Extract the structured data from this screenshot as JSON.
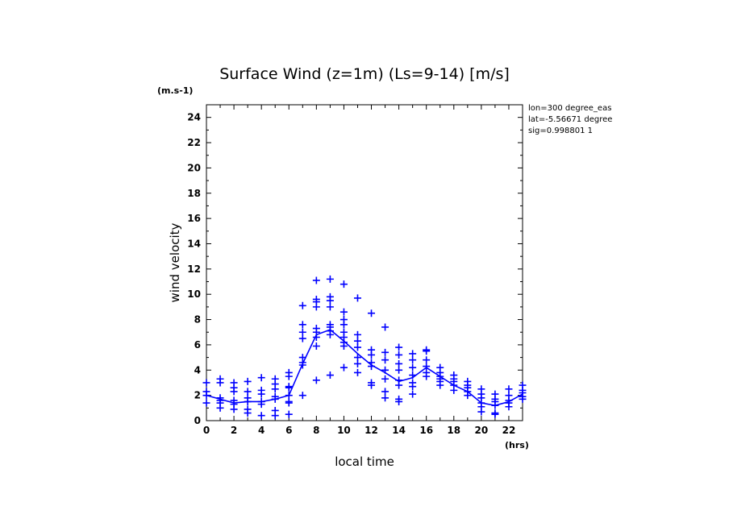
{
  "chart_data": {
    "type": "line",
    "title": "Surface Wind (z=1m) (Ls=9-14) [m/s]",
    "xlabel": "local time",
    "ylabel": "wind velocity",
    "x_unit": "(hrs)",
    "y_unit": "(m.s-1)",
    "xlim": [
      0,
      23
    ],
    "ylim": [
      0,
      25
    ],
    "x_ticks": [
      0,
      2,
      4,
      6,
      8,
      10,
      12,
      14,
      16,
      18,
      20,
      22
    ],
    "y_ticks": [
      0,
      2,
      4,
      6,
      8,
      10,
      12,
      14,
      16,
      18,
      20,
      22,
      24
    ],
    "grid": false,
    "annotations": [
      "lon=300 degree_eas",
      "lat=-5.56671 degree",
      "sig=0.998801 1"
    ],
    "colors": {
      "series": "#0000ff",
      "axes": "#000000"
    },
    "series": [
      {
        "type": "line",
        "x": [
          0,
          1,
          2,
          3,
          4,
          5,
          6,
          7,
          8,
          9,
          10,
          11,
          12,
          13,
          14,
          15,
          16,
          17,
          18,
          19,
          20,
          21,
          22,
          23
        ],
        "y": [
          2.0,
          1.7,
          1.4,
          1.5,
          1.5,
          1.7,
          2.0,
          4.5,
          6.8,
          7.2,
          6.3,
          5.3,
          4.4,
          3.8,
          3.1,
          3.4,
          4.2,
          3.5,
          2.8,
          2.3,
          1.4,
          1.2,
          1.5,
          2.1
        ]
      },
      {
        "type": "scatter",
        "marker": "+",
        "points": [
          [
            0,
            3.0
          ],
          [
            0,
            2.3
          ],
          [
            0,
            2.0
          ],
          [
            0,
            1.4
          ],
          [
            1,
            3.3
          ],
          [
            1,
            3.0
          ],
          [
            1,
            1.8
          ],
          [
            1,
            1.6
          ],
          [
            1,
            1.4
          ],
          [
            1,
            1.0
          ],
          [
            2,
            3.0
          ],
          [
            2,
            2.6
          ],
          [
            2,
            2.3
          ],
          [
            2,
            1.6
          ],
          [
            2,
            1.3
          ],
          [
            2,
            0.9
          ],
          [
            3,
            3.1
          ],
          [
            3,
            2.3
          ],
          [
            3,
            1.8
          ],
          [
            3,
            1.5
          ],
          [
            3,
            0.9
          ],
          [
            3,
            0.6
          ],
          [
            4,
            3.4
          ],
          [
            4,
            2.4
          ],
          [
            4,
            2.1
          ],
          [
            4,
            1.5
          ],
          [
            4,
            1.3
          ],
          [
            4,
            0.4
          ],
          [
            5,
            3.3
          ],
          [
            5,
            2.9
          ],
          [
            5,
            2.5
          ],
          [
            5,
            1.9
          ],
          [
            5,
            1.7
          ],
          [
            5,
            0.8
          ],
          [
            5,
            0.4
          ],
          [
            6,
            3.8
          ],
          [
            6,
            3.5
          ],
          [
            6,
            2.7
          ],
          [
            6,
            2.6
          ],
          [
            6,
            2.0
          ],
          [
            6,
            1.5
          ],
          [
            6,
            1.4
          ],
          [
            6,
            0.5
          ],
          [
            7,
            9.1
          ],
          [
            7,
            7.6
          ],
          [
            7,
            7.0
          ],
          [
            7,
            6.5
          ],
          [
            7,
            5.0
          ],
          [
            7,
            4.6
          ],
          [
            7,
            4.4
          ],
          [
            7,
            2.0
          ],
          [
            8,
            11.1
          ],
          [
            8,
            9.6
          ],
          [
            8,
            9.4
          ],
          [
            8,
            9.0
          ],
          [
            8,
            7.3
          ],
          [
            8,
            7.0
          ],
          [
            8,
            6.6
          ],
          [
            8,
            5.9
          ],
          [
            8,
            3.2
          ],
          [
            9,
            11.2
          ],
          [
            9,
            9.8
          ],
          [
            9,
            9.5
          ],
          [
            9,
            9.0
          ],
          [
            9,
            7.6
          ],
          [
            9,
            7.4
          ],
          [
            9,
            7.1
          ],
          [
            9,
            6.8
          ],
          [
            9,
            3.6
          ],
          [
            10,
            10.8
          ],
          [
            10,
            8.6
          ],
          [
            10,
            8.0
          ],
          [
            10,
            7.6
          ],
          [
            10,
            7.0
          ],
          [
            10,
            6.6
          ],
          [
            10,
            6.2
          ],
          [
            10,
            5.9
          ],
          [
            10,
            4.2
          ],
          [
            11,
            9.7
          ],
          [
            11,
            6.8
          ],
          [
            11,
            6.3
          ],
          [
            11,
            5.8
          ],
          [
            11,
            5.0
          ],
          [
            11,
            4.5
          ],
          [
            11,
            3.8
          ],
          [
            12,
            8.5
          ],
          [
            12,
            5.6
          ],
          [
            12,
            5.2
          ],
          [
            12,
            4.6
          ],
          [
            12,
            4.3
          ],
          [
            12,
            3.0
          ],
          [
            12,
            2.8
          ],
          [
            13,
            7.4
          ],
          [
            13,
            5.4
          ],
          [
            13,
            4.8
          ],
          [
            13,
            4.0
          ],
          [
            13,
            3.3
          ],
          [
            13,
            2.3
          ],
          [
            13,
            1.8
          ],
          [
            14,
            5.8
          ],
          [
            14,
            5.2
          ],
          [
            14,
            4.5
          ],
          [
            14,
            4.0
          ],
          [
            14,
            3.2
          ],
          [
            14,
            2.8
          ],
          [
            14,
            1.7
          ],
          [
            14,
            1.5
          ],
          [
            15,
            5.3
          ],
          [
            15,
            4.8
          ],
          [
            15,
            4.2
          ],
          [
            15,
            3.6
          ],
          [
            15,
            3.0
          ],
          [
            15,
            2.7
          ],
          [
            15,
            2.1
          ],
          [
            16,
            5.6
          ],
          [
            16,
            5.5
          ],
          [
            16,
            4.8
          ],
          [
            16,
            4.3
          ],
          [
            16,
            3.8
          ],
          [
            16,
            3.5
          ],
          [
            17,
            4.2
          ],
          [
            17,
            3.8
          ],
          [
            17,
            3.5
          ],
          [
            17,
            3.3
          ],
          [
            17,
            3.1
          ],
          [
            17,
            2.8
          ],
          [
            18,
            3.6
          ],
          [
            18,
            3.3
          ],
          [
            18,
            3.1
          ],
          [
            18,
            2.8
          ],
          [
            18,
            2.4
          ],
          [
            19,
            3.1
          ],
          [
            19,
            2.8
          ],
          [
            19,
            2.6
          ],
          [
            19,
            2.3
          ],
          [
            19,
            2.0
          ],
          [
            20,
            2.5
          ],
          [
            20,
            2.1
          ],
          [
            20,
            1.8
          ],
          [
            20,
            1.4
          ],
          [
            20,
            1.1
          ],
          [
            20,
            0.7
          ],
          [
            21,
            2.1
          ],
          [
            21,
            1.7
          ],
          [
            21,
            1.5
          ],
          [
            21,
            1.2
          ],
          [
            21,
            0.6
          ],
          [
            21,
            0.5
          ],
          [
            22,
            2.5
          ],
          [
            22,
            2.0
          ],
          [
            22,
            1.6
          ],
          [
            22,
            1.4
          ],
          [
            22,
            1.1
          ],
          [
            23,
            2.8
          ],
          [
            23,
            2.4
          ],
          [
            23,
            2.2
          ],
          [
            23,
            1.9
          ],
          [
            23,
            1.7
          ]
        ]
      }
    ]
  }
}
